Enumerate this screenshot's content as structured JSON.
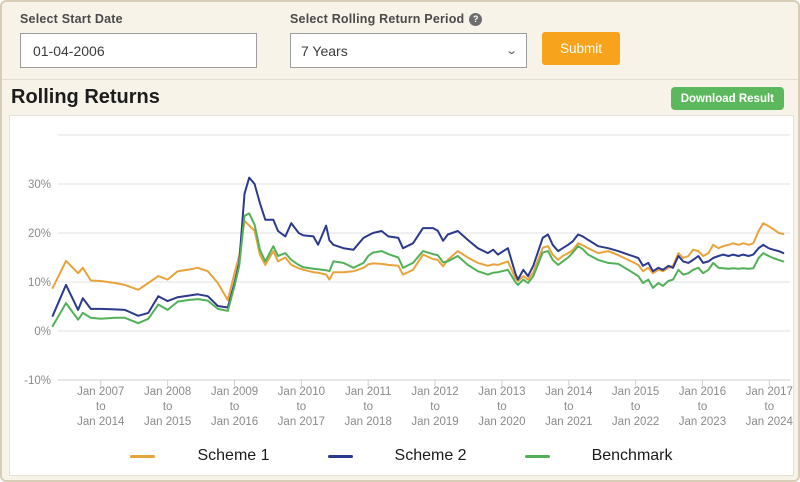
{
  "form": {
    "start_date_label": "Select Start Date",
    "start_date_value": "01-04-2006",
    "period_label": "Select Rolling Return Period",
    "help_glyph": "?",
    "period_value": "7 Years",
    "submit_label": "Submit"
  },
  "section": {
    "title": "Rolling Returns",
    "download_label": "Download Result"
  },
  "colors": {
    "submit_bg": "#f7a41c",
    "download_bg": "#5cb85c",
    "scheme1": "#e8a33c",
    "scheme2": "#2c3a8e",
    "benchmark": "#52b158",
    "grid": "#e2e2e2",
    "axis": "#cfcfcf",
    "tick_text": "#8a8a8a"
  },
  "chart_data": {
    "type": "line",
    "title": "Rolling Returns",
    "xlabel": "",
    "ylabel": "",
    "ylim": [
      -13,
      40
    ],
    "grid": true,
    "legend_position": "bottom",
    "y_tick_values": [
      30,
      20,
      10,
      0,
      -10
    ],
    "y_tick_labels": [
      "30%",
      "20%",
      "10%",
      "0%",
      "-10%"
    ],
    "y_top_boundary": 40,
    "x_ticks": [
      {
        "year": 2007,
        "from": "Jan 2007",
        "mid": "to",
        "to": "Jan 2014"
      },
      {
        "year": 2008,
        "from": "Jan 2008",
        "mid": "to",
        "to": "Jan 2015"
      },
      {
        "year": 2009,
        "from": "Jan 2009",
        "mid": "to",
        "to": "Jan 2016"
      },
      {
        "year": 2010,
        "from": "Jan 2010",
        "mid": "to",
        "to": "Jan 2017"
      },
      {
        "year": 2011,
        "from": "Jan 2011",
        "mid": "to",
        "to": "Jan 2018"
      },
      {
        "year": 2012,
        "from": "Jan 2012",
        "mid": "to",
        "to": "Jan 2019"
      },
      {
        "year": 2013,
        "from": "Jan 2013",
        "mid": "to",
        "to": "Jan 2020"
      },
      {
        "year": 2014,
        "from": "Jan 2014",
        "mid": "to",
        "to": "Jan 2021"
      },
      {
        "year": 2015,
        "from": "Jan 2015",
        "mid": "to",
        "to": "Jan 2022"
      },
      {
        "year": 2016,
        "from": "Jan 2016",
        "mid": "to",
        "to": "Jan 2023"
      },
      {
        "year": 2017,
        "from": "Jan 2017",
        "mid": "to",
        "to": "Jan 2024"
      }
    ],
    "x": [
      2006.28,
      2006.48,
      2006.66,
      2006.73,
      2006.85,
      2007.0,
      2007.21,
      2007.36,
      2007.56,
      2007.71,
      2007.86,
      2008.0,
      2008.15,
      2008.3,
      2008.45,
      2008.6,
      2008.75,
      2008.9,
      2009.0,
      2009.07,
      2009.15,
      2009.22,
      2009.3,
      2009.38,
      2009.46,
      2009.58,
      2009.65,
      2009.76,
      2009.85,
      2009.96,
      2010.03,
      2010.18,
      2010.25,
      2010.37,
      2010.42,
      2010.48,
      2010.63,
      2010.78,
      2010.93,
      2011.0,
      2011.07,
      2011.2,
      2011.3,
      2011.45,
      2011.52,
      2011.67,
      2011.82,
      2011.97,
      2012.04,
      2012.12,
      2012.19,
      2012.34,
      2012.49,
      2012.64,
      2012.79,
      2012.87,
      2012.94,
      2013.09,
      2013.2,
      2013.24,
      2013.32,
      2013.39,
      2013.47,
      2013.61,
      2013.69,
      2013.76,
      2013.84,
      2013.91,
      2013.99,
      2014.06,
      2014.14,
      2014.21,
      2014.29,
      2014.44,
      2014.59,
      2014.74,
      2014.89,
      2015.04,
      2015.11,
      2015.19,
      2015.26,
      2015.34,
      2015.41,
      2015.49,
      2015.56,
      2015.64,
      2015.71,
      2015.79,
      2015.86,
      2015.94,
      2016.01,
      2016.09,
      2016.16,
      2016.24,
      2016.31,
      2016.39,
      2016.46,
      2016.54,
      2016.61,
      2016.69,
      2016.76,
      2016.84,
      2016.91,
      2016.99,
      2017.06,
      2017.14,
      2017.21
    ],
    "series": [
      {
        "name": "Scheme 1",
        "color": "#e8a33c",
        "values": [
          8.8,
          14.3,
          11.8,
          12.9,
          10.3,
          10.2,
          9.8,
          9.4,
          8.4,
          9.8,
          11.2,
          10.5,
          12.2,
          12.5,
          12.9,
          12.2,
          9.8,
          6.3,
          11.8,
          15.3,
          22.5,
          21.5,
          20.5,
          15.6,
          13.5,
          16.3,
          14.2,
          15.0,
          13.5,
          12.8,
          12.5,
          12.0,
          11.9,
          11.5,
          10.5,
          12.0,
          12.0,
          12.2,
          12.9,
          13.6,
          13.8,
          13.7,
          13.5,
          13.3,
          11.5,
          12.5,
          15.6,
          14.7,
          14.5,
          13.2,
          14.5,
          16.3,
          15.0,
          13.9,
          13.3,
          13.6,
          13.5,
          14.2,
          10.8,
          10.2,
          11.2,
          10.5,
          12.0,
          17.0,
          17.3,
          15.6,
          14.5,
          15.3,
          15.9,
          16.5,
          17.9,
          17.5,
          16.9,
          15.9,
          16.3,
          15.5,
          14.5,
          13.5,
          12.2,
          12.9,
          11.8,
          12.5,
          12.2,
          12.9,
          13.3,
          15.9,
          14.9,
          15.3,
          16.6,
          16.3,
          15.3,
          15.9,
          17.6,
          16.9,
          17.3,
          17.6,
          17.9,
          17.6,
          17.9,
          17.6,
          17.9,
          20.4,
          22.0,
          21.4,
          20.8,
          20.0,
          19.8
        ]
      },
      {
        "name": "Scheme 2",
        "color": "#2c3a8e",
        "values": [
          3.1,
          9.4,
          4.3,
          6.7,
          4.5,
          4.5,
          4.4,
          4.3,
          3.1,
          3.7,
          7.1,
          6.1,
          6.9,
          7.2,
          7.5,
          7.1,
          5.1,
          4.8,
          9.8,
          13.9,
          28.0,
          31.3,
          30.0,
          26.1,
          22.7,
          22.7,
          20.4,
          19.3,
          22.0,
          20.0,
          19.5,
          19.3,
          17.6,
          21.5,
          18.5,
          17.6,
          16.9,
          16.6,
          19.0,
          19.5,
          20.0,
          20.4,
          19.3,
          19.0,
          16.9,
          17.9,
          21.0,
          21.0,
          20.5,
          18.4,
          19.7,
          20.4,
          18.6,
          16.9,
          15.9,
          16.6,
          15.6,
          16.9,
          11.8,
          10.5,
          12.5,
          11.2,
          13.3,
          19.0,
          19.7,
          17.6,
          16.3,
          16.9,
          17.6,
          18.3,
          19.7,
          19.3,
          18.6,
          17.3,
          16.9,
          16.3,
          15.6,
          14.9,
          13.3,
          13.9,
          12.2,
          12.9,
          12.5,
          13.3,
          12.9,
          15.3,
          14.2,
          13.9,
          14.5,
          15.3,
          13.9,
          14.2,
          14.9,
          15.3,
          15.6,
          15.3,
          15.6,
          15.3,
          15.6,
          15.3,
          15.6,
          16.9,
          17.6,
          16.9,
          16.6,
          16.3,
          15.9
        ]
      },
      {
        "name": "Benchmark",
        "color": "#52b158",
        "values": [
          1.0,
          5.7,
          2.3,
          3.7,
          2.7,
          2.5,
          2.7,
          2.7,
          1.6,
          2.5,
          5.4,
          4.3,
          6.0,
          6.3,
          6.5,
          6.2,
          4.5,
          4.1,
          9.2,
          13.3,
          23.5,
          24.0,
          21.7,
          16.6,
          14.2,
          17.3,
          15.3,
          15.9,
          14.5,
          13.5,
          13.0,
          12.7,
          12.6,
          12.4,
          12.2,
          14.2,
          13.9,
          12.9,
          13.9,
          15.3,
          16.0,
          16.3,
          15.7,
          15.0,
          12.9,
          13.9,
          16.3,
          15.7,
          15.5,
          14.0,
          14.2,
          15.3,
          13.5,
          12.2,
          11.5,
          11.9,
          12.0,
          12.5,
          10.0,
          9.4,
          10.5,
          9.8,
          11.2,
          16.0,
          16.3,
          14.5,
          13.5,
          14.2,
          15.0,
          16.0,
          17.3,
          16.7,
          15.6,
          14.5,
          13.9,
          13.7,
          12.5,
          11.2,
          9.8,
          10.5,
          8.8,
          9.8,
          9.2,
          10.2,
          10.5,
          12.5,
          11.5,
          11.8,
          12.5,
          12.9,
          11.8,
          12.5,
          13.9,
          12.9,
          12.8,
          12.7,
          12.8,
          12.7,
          12.8,
          12.7,
          12.8,
          14.9,
          15.9,
          15.3,
          14.9,
          14.5,
          14.2
        ]
      }
    ]
  }
}
